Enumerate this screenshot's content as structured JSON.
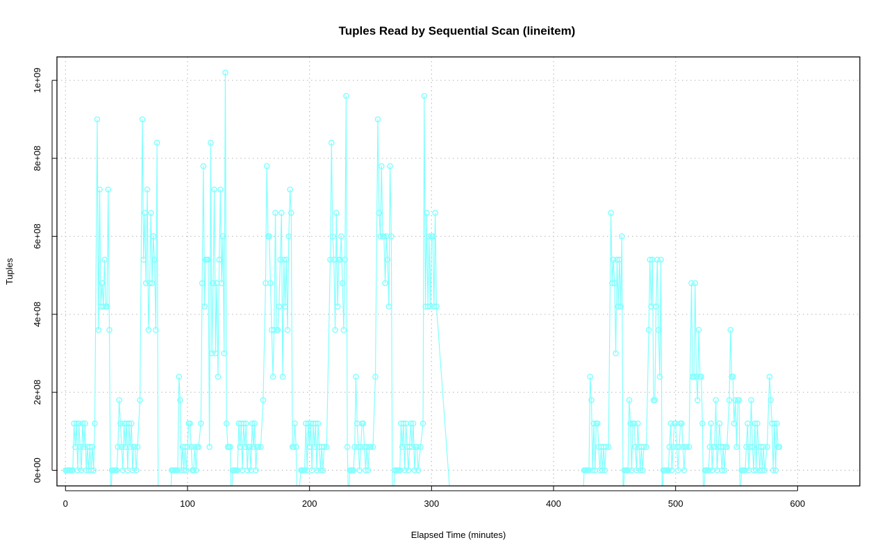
{
  "chart_data": {
    "type": "line",
    "title": "Tuples Read by Sequential Scan (lineitem)",
    "xlabel": "Elapsed Time (minutes)",
    "ylabel": "Tuples",
    "xlim": [
      -7,
      651
    ],
    "ylim": [
      -0.4,
      10.6
    ],
    "y_unit_multiplier": 100000000,
    "x_ticks": [
      0,
      100,
      200,
      300,
      400,
      500,
      600
    ],
    "x_tick_labels": [
      "0",
      "100",
      "200",
      "300",
      "400",
      "500",
      "600"
    ],
    "y_ticks": [
      0,
      2,
      4,
      6,
      8,
      10
    ],
    "y_tick_labels": [
      "0e+00",
      "2e+08",
      "4e+08",
      "6e+08",
      "8e+08",
      "1e+09"
    ],
    "grid": true,
    "series_color": "#80FFFF",
    "marker": "open-circle",
    "points": [
      [
        0,
        0
      ],
      [
        1,
        0
      ],
      [
        2,
        0
      ],
      [
        3,
        0
      ],
      [
        4,
        0
      ],
      [
        5,
        0
      ],
      [
        6,
        0
      ],
      [
        7,
        1.2
      ],
      [
        8,
        0.6
      ],
      [
        9,
        1.2
      ],
      [
        10,
        0
      ],
      [
        11,
        1.2
      ],
      [
        12,
        0.6
      ],
      [
        13,
        0
      ],
      [
        14,
        1.2
      ],
      [
        15,
        0.6
      ],
      [
        16,
        1.2
      ],
      [
        17,
        0
      ],
      [
        18,
        0.6
      ],
      [
        19,
        0
      ],
      [
        20,
        0.6
      ],
      [
        21,
        0
      ],
      [
        22,
        0.6
      ],
      [
        23,
        0
      ],
      [
        24,
        1.2
      ],
      [
        26,
        9.0
      ],
      [
        27,
        3.6
      ],
      [
        28,
        7.2
      ],
      [
        29,
        4.2
      ],
      [
        30,
        4.8
      ],
      [
        31,
        4.2
      ],
      [
        32,
        5.4
      ],
      [
        33,
        4.2
      ],
      [
        34,
        4.2
      ],
      [
        35,
        7.2
      ],
      [
        36,
        3.6
      ],
      [
        37,
        -1
      ],
      [
        38,
        0
      ],
      [
        39,
        0
      ],
      [
        40,
        0
      ],
      [
        41,
        0
      ],
      [
        42,
        0
      ],
      [
        43,
        0.6
      ],
      [
        44,
        1.8
      ],
      [
        45,
        1.2
      ],
      [
        46,
        0.6
      ],
      [
        47,
        0
      ],
      [
        48,
        1.2
      ],
      [
        49,
        0.6
      ],
      [
        50,
        1.2
      ],
      [
        51,
        0
      ],
      [
        52,
        1.2
      ],
      [
        53,
        0.6
      ],
      [
        54,
        1.2
      ],
      [
        55,
        0
      ],
      [
        56,
        0.6
      ],
      [
        57,
        0.6
      ],
      [
        58,
        0
      ],
      [
        59,
        0.6
      ],
      [
        61,
        1.8
      ],
      [
        63,
        9.0
      ],
      [
        64,
        5.4
      ],
      [
        65,
        6.6
      ],
      [
        66,
        4.8
      ],
      [
        67,
        7.2
      ],
      [
        68,
        3.6
      ],
      [
        69,
        4.8
      ],
      [
        70,
        6.6
      ],
      [
        71,
        4.8
      ],
      [
        72,
        6.0
      ],
      [
        73,
        5.4
      ],
      [
        74,
        3.6
      ],
      [
        75,
        8.4
      ],
      [
        76,
        -1
      ],
      [
        86,
        -1
      ],
      [
        87,
        0
      ],
      [
        88,
        0
      ],
      [
        89,
        0
      ],
      [
        90,
        0
      ],
      [
        91,
        0
      ],
      [
        92,
        0
      ],
      [
        93,
        2.4
      ],
      [
        94,
        1.8
      ],
      [
        95,
        0
      ],
      [
        96,
        0.6
      ],
      [
        97,
        0
      ],
      [
        98,
        0.6
      ],
      [
        99,
        0
      ],
      [
        100,
        0.6
      ],
      [
        101,
        1.2
      ],
      [
        102,
        1.2
      ],
      [
        103,
        0.6
      ],
      [
        104,
        0
      ],
      [
        105,
        0
      ],
      [
        106,
        0.6
      ],
      [
        107,
        0
      ],
      [
        108,
        0.6
      ],
      [
        109,
        0.6
      ],
      [
        111,
        1.2
      ],
      [
        112,
        4.8
      ],
      [
        113,
        7.8
      ],
      [
        114,
        4.2
      ],
      [
        115,
        5.4
      ],
      [
        116,
        5.4
      ],
      [
        117,
        5.4
      ],
      [
        118,
        0.6
      ],
      [
        119,
        8.4
      ],
      [
        120,
        3.0
      ],
      [
        121,
        4.8
      ],
      [
        122,
        7.2
      ],
      [
        123,
        3.0
      ],
      [
        124,
        4.8
      ],
      [
        125,
        2.4
      ],
      [
        126,
        5.4
      ],
      [
        127,
        7.2
      ],
      [
        128,
        4.8
      ],
      [
        129,
        6.0
      ],
      [
        130,
        3.0
      ],
      [
        131,
        10.2
      ],
      [
        132,
        1.2
      ],
      [
        133,
        0.6
      ],
      [
        134,
        0.6
      ],
      [
        135,
        0.6
      ],
      [
        136,
        -1
      ],
      [
        137,
        0
      ],
      [
        138,
        0
      ],
      [
        139,
        0
      ],
      [
        140,
        0
      ],
      [
        141,
        0
      ],
      [
        142,
        1.2
      ],
      [
        143,
        0.6
      ],
      [
        144,
        1.2
      ],
      [
        145,
        0
      ],
      [
        146,
        1.2
      ],
      [
        147,
        0.6
      ],
      [
        148,
        1.2
      ],
      [
        149,
        0
      ],
      [
        150,
        0.6
      ],
      [
        151,
        0.6
      ],
      [
        152,
        0
      ],
      [
        153,
        1.2
      ],
      [
        154,
        0.6
      ],
      [
        155,
        1.2
      ],
      [
        156,
        0
      ],
      [
        157,
        0.6
      ],
      [
        158,
        0.6
      ],
      [
        160,
        0.6
      ],
      [
        162,
        1.8
      ],
      [
        164,
        4.8
      ],
      [
        165,
        7.8
      ],
      [
        166,
        6.0
      ],
      [
        167,
        6.0
      ],
      [
        168,
        4.8
      ],
      [
        169,
        3.6
      ],
      [
        170,
        2.4
      ],
      [
        171,
        3.6
      ],
      [
        172,
        6.6
      ],
      [
        173,
        3.6
      ],
      [
        174,
        3.6
      ],
      [
        175,
        4.2
      ],
      [
        176,
        5.4
      ],
      [
        177,
        6.6
      ],
      [
        178,
        2.4
      ],
      [
        179,
        5.4
      ],
      [
        180,
        4.2
      ],
      [
        181,
        5.4
      ],
      [
        182,
        3.6
      ],
      [
        183,
        6.0
      ],
      [
        184,
        7.2
      ],
      [
        185,
        6.6
      ],
      [
        186,
        0.6
      ],
      [
        187,
        0.6
      ],
      [
        188,
        1.2
      ],
      [
        189,
        0.6
      ],
      [
        190,
        -1
      ],
      [
        193,
        0
      ],
      [
        194,
        0
      ],
      [
        195,
        0
      ],
      [
        196,
        0
      ],
      [
        197,
        1.2
      ],
      [
        198,
        0
      ],
      [
        199,
        1.2
      ],
      [
        200,
        0.6
      ],
      [
        201,
        1.2
      ],
      [
        202,
        0
      ],
      [
        203,
        1.2
      ],
      [
        204,
        0.6
      ],
      [
        205,
        1.2
      ],
      [
        206,
        0
      ],
      [
        207,
        1.2
      ],
      [
        208,
        0.6
      ],
      [
        209,
        0
      ],
      [
        210,
        0.6
      ],
      [
        211,
        0
      ],
      [
        212,
        0.6
      ],
      [
        214,
        0.6
      ],
      [
        217,
        5.4
      ],
      [
        218,
        8.4
      ],
      [
        219,
        6.0
      ],
      [
        220,
        5.4
      ],
      [
        221,
        3.6
      ],
      [
        222,
        6.6
      ],
      [
        223,
        4.2
      ],
      [
        224,
        5.4
      ],
      [
        225,
        5.4
      ],
      [
        226,
        6.0
      ],
      [
        227,
        4.8
      ],
      [
        228,
        3.6
      ],
      [
        229,
        5.4
      ],
      [
        230,
        9.6
      ],
      [
        231,
        0.6
      ],
      [
        232,
        -1
      ],
      [
        233,
        0
      ],
      [
        234,
        0
      ],
      [
        235,
        0
      ],
      [
        236,
        0
      ],
      [
        237,
        0.6
      ],
      [
        238,
        2.4
      ],
      [
        239,
        1.2
      ],
      [
        240,
        0.6
      ],
      [
        241,
        0
      ],
      [
        242,
        0.6
      ],
      [
        243,
        1.2
      ],
      [
        244,
        1.2
      ],
      [
        245,
        0.6
      ],
      [
        246,
        0
      ],
      [
        247,
        0.6
      ],
      [
        248,
        0
      ],
      [
        249,
        0.6
      ],
      [
        250,
        0.6
      ],
      [
        252,
        0.6
      ],
      [
        254,
        2.4
      ],
      [
        256,
        9.0
      ],
      [
        257,
        6.6
      ],
      [
        258,
        6.0
      ],
      [
        259,
        7.8
      ],
      [
        260,
        6.0
      ],
      [
        261,
        6.0
      ],
      [
        262,
        4.8
      ],
      [
        263,
        6.0
      ],
      [
        264,
        5.4
      ],
      [
        265,
        4.2
      ],
      [
        266,
        7.8
      ],
      [
        267,
        6.0
      ],
      [
        268,
        -1
      ],
      [
        270,
        0
      ],
      [
        271,
        0
      ],
      [
        272,
        0
      ],
      [
        273,
        0
      ],
      [
        274,
        0
      ],
      [
        275,
        1.2
      ],
      [
        276,
        0.6
      ],
      [
        277,
        1.2
      ],
      [
        278,
        0
      ],
      [
        279,
        1.2
      ],
      [
        280,
        0.6
      ],
      [
        281,
        0
      ],
      [
        282,
        0.6
      ],
      [
        283,
        1.2
      ],
      [
        284,
        0.6
      ],
      [
        285,
        1.2
      ],
      [
        286,
        0
      ],
      [
        287,
        0.6
      ],
      [
        288,
        0.6
      ],
      [
        289,
        0
      ],
      [
        291,
        0.6
      ],
      [
        293,
        1.2
      ],
      [
        294,
        9.6
      ],
      [
        295,
        4.2
      ],
      [
        296,
        6.6
      ],
      [
        297,
        4.2
      ],
      [
        298,
        6.0
      ],
      [
        299,
        4.2
      ],
      [
        300,
        6.0
      ],
      [
        301,
        6.0
      ],
      [
        302,
        4.2
      ],
      [
        303,
        6.6
      ],
      [
        304,
        4.2
      ],
      [
        316,
        -1
      ],
      [
        424,
        -1
      ],
      [
        425,
        0
      ],
      [
        426,
        0
      ],
      [
        427,
        0
      ],
      [
        428,
        0
      ],
      [
        429,
        0
      ],
      [
        430,
        2.4
      ],
      [
        431,
        1.8
      ],
      [
        432,
        0
      ],
      [
        433,
        1.2
      ],
      [
        434,
        0
      ],
      [
        435,
        1.2
      ],
      [
        436,
        1.2
      ],
      [
        437,
        0.6
      ],
      [
        438,
        0
      ],
      [
        439,
        0.6
      ],
      [
        440,
        0
      ],
      [
        441,
        0.6
      ],
      [
        442,
        0
      ],
      [
        443,
        0.6
      ],
      [
        445,
        0.6
      ],
      [
        447,
        6.6
      ],
      [
        448,
        4.8
      ],
      [
        449,
        5.4
      ],
      [
        450,
        4.8
      ],
      [
        451,
        3.0
      ],
      [
        452,
        5.4
      ],
      [
        453,
        4.2
      ],
      [
        454,
        5.4
      ],
      [
        455,
        4.2
      ],
      [
        456,
        6.0
      ],
      [
        457,
        -1
      ],
      [
        458,
        0
      ],
      [
        459,
        0
      ],
      [
        460,
        0
      ],
      [
        461,
        0
      ],
      [
        462,
        1.8
      ],
      [
        463,
        1.2
      ],
      [
        464,
        0
      ],
      [
        465,
        1.2
      ],
      [
        466,
        1.2
      ],
      [
        467,
        0.6
      ],
      [
        468,
        0
      ],
      [
        469,
        1.2
      ],
      [
        470,
        0.6
      ],
      [
        471,
        0
      ],
      [
        472,
        0.6
      ],
      [
        473,
        0
      ],
      [
        474,
        0.6
      ],
      [
        476,
        0.6
      ],
      [
        478,
        3.6
      ],
      [
        479,
        5.4
      ],
      [
        480,
        4.2
      ],
      [
        481,
        5.4
      ],
      [
        482,
        1.8
      ],
      [
        483,
        1.8
      ],
      [
        484,
        4.2
      ],
      [
        485,
        5.4
      ],
      [
        486,
        3.6
      ],
      [
        487,
        2.4
      ],
      [
        488,
        5.4
      ],
      [
        489,
        -1
      ],
      [
        490,
        0
      ],
      [
        491,
        0
      ],
      [
        492,
        0
      ],
      [
        493,
        0
      ],
      [
        494,
        0
      ],
      [
        495,
        0.6
      ],
      [
        496,
        1.2
      ],
      [
        497,
        0
      ],
      [
        498,
        0.6
      ],
      [
        499,
        1.2
      ],
      [
        500,
        1.2
      ],
      [
        501,
        0.6
      ],
      [
        502,
        0
      ],
      [
        503,
        0.6
      ],
      [
        504,
        1.2
      ],
      [
        505,
        1.2
      ],
      [
        506,
        0.6
      ],
      [
        507,
        0
      ],
      [
        508,
        0.6
      ],
      [
        509,
        0.6
      ],
      [
        511,
        0.6
      ],
      [
        513,
        4.8
      ],
      [
        514,
        2.4
      ],
      [
        515,
        2.4
      ],
      [
        516,
        4.8
      ],
      [
        517,
        2.4
      ],
      [
        518,
        1.8
      ],
      [
        519,
        3.6
      ],
      [
        520,
        2.4
      ],
      [
        521,
        2.4
      ],
      [
        522,
        1.2
      ],
      [
        523,
        -1
      ],
      [
        524,
        0
      ],
      [
        525,
        0
      ],
      [
        526,
        0
      ],
      [
        527,
        0
      ],
      [
        528,
        0.6
      ],
      [
        529,
        1.2
      ],
      [
        530,
        0
      ],
      [
        531,
        0.6
      ],
      [
        532,
        0.6
      ],
      [
        533,
        1.8
      ],
      [
        534,
        0
      ],
      [
        535,
        0.6
      ],
      [
        536,
        1.2
      ],
      [
        537,
        0.6
      ],
      [
        538,
        0
      ],
      [
        539,
        0.6
      ],
      [
        540,
        0
      ],
      [
        541,
        0.6
      ],
      [
        542,
        0.6
      ],
      [
        544,
        1.8
      ],
      [
        545,
        3.6
      ],
      [
        546,
        2.4
      ],
      [
        547,
        2.4
      ],
      [
        548,
        1.2
      ],
      [
        549,
        1.8
      ],
      [
        550,
        0.6
      ],
      [
        551,
        1.8
      ],
      [
        552,
        1.8
      ],
      [
        553,
        -1
      ],
      [
        554,
        0
      ],
      [
        555,
        0
      ],
      [
        556,
        0
      ],
      [
        557,
        0
      ],
      [
        558,
        0.6
      ],
      [
        559,
        1.2
      ],
      [
        560,
        0
      ],
      [
        561,
        0.6
      ],
      [
        562,
        1.8
      ],
      [
        563,
        0.6
      ],
      [
        564,
        0
      ],
      [
        565,
        1.2
      ],
      [
        566,
        0
      ],
      [
        567,
        1.2
      ],
      [
        568,
        0.6
      ],
      [
        569,
        0
      ],
      [
        570,
        0.6
      ],
      [
        571,
        0
      ],
      [
        572,
        0.6
      ],
      [
        573,
        0
      ],
      [
        575,
        0.6
      ],
      [
        577,
        2.4
      ],
      [
        578,
        1.8
      ],
      [
        579,
        1.2
      ],
      [
        580,
        0
      ],
      [
        581,
        1.2
      ],
      [
        582,
        0
      ],
      [
        583,
        1.2
      ],
      [
        584,
        0.6
      ],
      [
        585,
        0.6
      ]
    ]
  }
}
